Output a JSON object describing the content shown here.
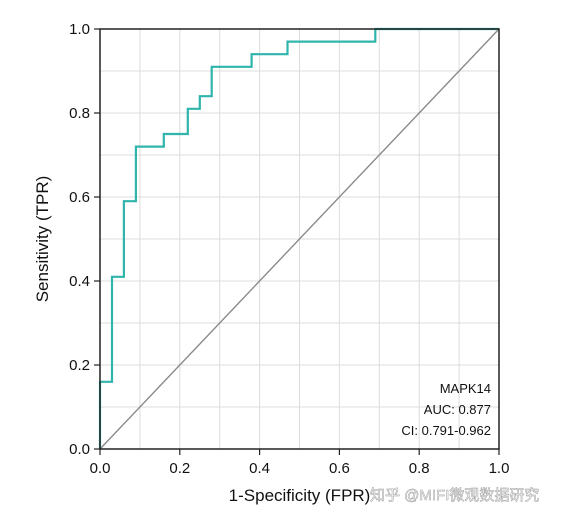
{
  "chart_data": {
    "type": "line",
    "title": "",
    "xlabel": "1-Specificity (FPR)",
    "ylabel": "Sensitivity (TPR)",
    "xlim": [
      0,
      1
    ],
    "ylim": [
      0,
      1
    ],
    "x_ticks": [
      0.0,
      0.2,
      0.4,
      0.6,
      0.8,
      1.0
    ],
    "y_ticks": [
      0.0,
      0.2,
      0.4,
      0.6,
      0.8,
      1.0
    ],
    "x_tick_labels": [
      "0.0",
      "0.2",
      "0.4",
      "0.6",
      "0.8",
      "1.0"
    ],
    "y_tick_labels": [
      "0.0",
      "0.2",
      "0.4",
      "0.6",
      "0.8",
      "1.0"
    ],
    "grid": true,
    "series": [
      {
        "name": "MAPK14",
        "color": "#2fb5ac",
        "x": [
          0.0,
          0.0,
          0.03,
          0.03,
          0.06,
          0.06,
          0.09,
          0.09,
          0.16,
          0.16,
          0.22,
          0.22,
          0.25,
          0.25,
          0.28,
          0.28,
          0.38,
          0.38,
          0.47,
          0.47,
          0.69,
          0.69,
          1.0
        ],
        "y": [
          0.0,
          0.16,
          0.16,
          0.41,
          0.41,
          0.59,
          0.59,
          0.72,
          0.72,
          0.75,
          0.75,
          0.81,
          0.81,
          0.84,
          0.84,
          0.91,
          0.91,
          0.94,
          0.94,
          0.97,
          0.97,
          1.0,
          1.0
        ]
      },
      {
        "color": "#8a8a8a",
        "x": [
          0.0,
          1.0
        ],
        "y": [
          0.0,
          1.0
        ]
      }
    ],
    "annotations": [
      "MAPK14",
      "AUC: 0.877",
      "CI: 0.791-0.962"
    ]
  },
  "watermark": "知乎 @MIFI微观数据研究",
  "colors": {
    "grid": "#dcdcdc",
    "axis": "#222222",
    "text": "#111111"
  }
}
